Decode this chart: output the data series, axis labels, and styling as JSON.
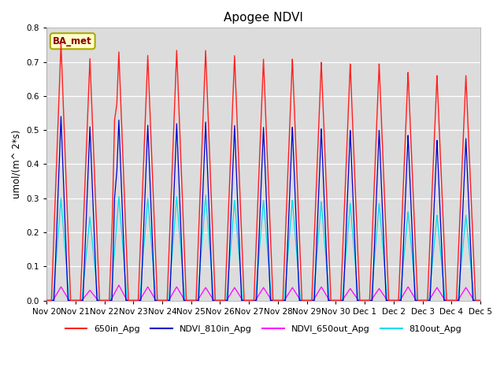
{
  "title": "Apogee NDVI",
  "ylabel": "umol/(m^ 2*s)",
  "ylim": [
    0.0,
    0.8
  ],
  "yticks": [
    0.0,
    0.1,
    0.2,
    0.3,
    0.4,
    0.5,
    0.6,
    0.7,
    0.8
  ],
  "bg_color": "#dcdcdc",
  "fig_color": "#ffffff",
  "legend_label": "BA_met",
  "series": [
    {
      "label": "650in_Apg",
      "color": "#ff2020",
      "zorder": 4
    },
    {
      "label": "NDVI_810in_Apg",
      "color": "#0000cc",
      "zorder": 3
    },
    {
      "label": "NDVI_650out_Apg",
      "color": "#ff00ff",
      "zorder": 2
    },
    {
      "label": "810out_Apg",
      "color": "#00ddee",
      "zorder": 1
    }
  ],
  "n_days": 15,
  "peaks_650in": [
    0.755,
    0.71,
    0.73,
    0.72,
    0.735,
    0.735,
    0.72,
    0.71,
    0.71,
    0.7,
    0.695,
    0.695,
    0.67,
    0.66,
    0.66
  ],
  "peaks_810in": [
    0.54,
    0.51,
    0.53,
    0.515,
    0.52,
    0.525,
    0.515,
    0.51,
    0.51,
    0.505,
    0.5,
    0.5,
    0.485,
    0.47,
    0.475
  ],
  "peaks_650out": [
    0.04,
    0.03,
    0.045,
    0.04,
    0.04,
    0.038,
    0.038,
    0.038,
    0.038,
    0.04,
    0.035,
    0.035,
    0.04,
    0.038,
    0.038
  ],
  "peaks_810out": [
    0.3,
    0.245,
    0.305,
    0.3,
    0.305,
    0.31,
    0.295,
    0.295,
    0.295,
    0.29,
    0.285,
    0.285,
    0.26,
    0.25,
    0.25
  ],
  "extra_peak_day2_650": 0.13,
  "extra_peak_day2_810": 0.1,
  "xtick_labels": [
    "Nov 20",
    "Nov 21",
    "Nov 22",
    "Nov 23",
    "Nov 24",
    "Nov 25",
    "Nov 26",
    "Nov 27",
    "Nov 28",
    "Nov 29",
    "Nov 30",
    "Dec 1",
    "Dec 2",
    "Dec 3",
    "Dec 4",
    "Dec 5"
  ]
}
